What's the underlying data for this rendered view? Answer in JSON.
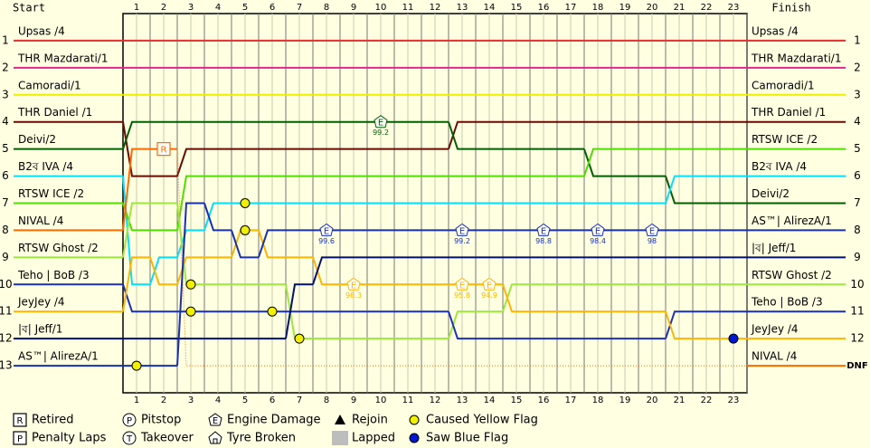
{
  "chart_data": {
    "type": "lap",
    "start_label": "Start",
    "finish_label": "Finish",
    "xlim": [
      0,
      23
    ],
    "xticks": [
      1,
      2,
      3,
      4,
      5,
      6,
      7,
      8,
      9,
      10,
      11,
      12,
      13,
      14,
      15,
      16,
      17,
      18,
      19,
      20,
      21,
      22,
      23
    ],
    "ylim": [
      0,
      14
    ],
    "yticks": [
      1,
      2,
      3,
      4,
      5,
      6,
      7,
      8,
      9,
      10,
      11,
      12,
      13
    ],
    "y2ticks": [
      1,
      2,
      3,
      4,
      5,
      6,
      7,
      8,
      9,
      10,
      11,
      12,
      {
        "value": 13,
        "label": "DNF"
      }
    ],
    "series": [
      {
        "name": "Upsas /4",
        "color": "#e03030",
        "values": [
          1,
          1,
          1,
          1,
          1,
          1,
          1,
          1,
          1,
          1,
          1,
          1,
          1,
          1,
          1,
          1,
          1,
          1,
          1,
          1,
          1,
          1,
          1,
          1
        ]
      },
      {
        "name": "THR Mazdarati/1",
        "color": "#e0288c",
        "values": [
          2,
          2,
          2,
          2,
          2,
          2,
          2,
          2,
          2,
          2,
          2,
          2,
          2,
          2,
          2,
          2,
          2,
          2,
          2,
          2,
          2,
          2,
          2,
          2
        ]
      },
      {
        "name": "Camoradi/1",
        "color": "#eeee00",
        "values": [
          3,
          3,
          3,
          3,
          3,
          3,
          3,
          3,
          3,
          3,
          3,
          3,
          3,
          3,
          3,
          3,
          3,
          3,
          3,
          3,
          3,
          3,
          3,
          3
        ]
      },
      {
        "name": "THR Daniel /1",
        "color": "#6b0a00",
        "values": [
          4,
          6,
          6,
          5,
          5,
          5,
          5,
          5,
          5,
          5,
          5,
          5,
          5,
          4,
          4,
          4,
          4,
          4,
          4,
          4,
          4,
          4,
          4,
          4
        ]
      },
      {
        "name": "Deivi/2",
        "color": "#006000",
        "values": [
          5,
          4,
          4,
          4,
          4,
          4,
          4,
          4,
          4,
          4,
          4,
          4,
          4,
          5,
          5,
          5,
          5,
          5,
          6,
          6,
          6,
          7,
          7,
          7
        ],
        "events": [
          {
            "lap": 10,
            "shape": "pentagon",
            "symbol": "E",
            "value": 99.2
          }
        ]
      },
      {
        "name": "B2ব IVA /4",
        "color": "#00e0ff",
        "values": [
          6,
          10,
          9,
          8,
          7,
          7,
          7,
          7,
          7,
          7,
          7,
          7,
          7,
          7,
          7,
          7,
          7,
          7,
          7,
          7,
          7,
          6,
          6,
          6
        ],
        "events": [
          {
            "lap": 5,
            "shape": "yellow-dot"
          }
        ]
      },
      {
        "name": "RTSW ICE /2",
        "color": "#50dd00",
        "values": [
          7,
          8,
          8,
          6,
          6,
          6,
          6,
          6,
          6,
          6,
          6,
          6,
          6,
          6,
          6,
          6,
          6,
          6,
          5,
          5,
          5,
          5,
          5,
          5
        ]
      },
      {
        "name": "NIVAL /4",
        "color": "#ff6a00",
        "values": [
          8,
          5,
          5,
          13,
          13,
          13,
          13,
          13,
          13,
          13,
          13,
          13,
          13,
          13,
          13,
          13,
          13,
          13,
          13,
          13,
          13,
          13,
          13,
          13
        ],
        "events": [
          {
            "lap": 2,
            "shape": "box",
            "symbol": "R"
          }
        ]
      },
      {
        "name": "RTSW Ghost /2",
        "color": "#9ce83c",
        "values": [
          9,
          7,
          7,
          10,
          10,
          10,
          10,
          12,
          12,
          12,
          12,
          12,
          12,
          11,
          11,
          10,
          10,
          10,
          10,
          10,
          10,
          10,
          10,
          10
        ],
        "events": [
          {
            "lap": 3,
            "shape": "yellow-dot"
          },
          {
            "lap": 7,
            "shape": "yellow-dot"
          }
        ]
      },
      {
        "name": "Teho | BoB /3",
        "color": "#1c2fb8",
        "values": [
          10,
          11,
          11,
          11,
          11,
          11,
          11,
          11,
          11,
          11,
          11,
          11,
          11,
          12,
          12,
          12,
          12,
          12,
          12,
          12,
          12,
          11,
          11,
          11
        ],
        "events": [
          {
            "lap": 3,
            "shape": "yellow-dot"
          },
          {
            "lap": 6,
            "shape": "yellow-dot"
          }
        ]
      },
      {
        "name": "JeyJey /4",
        "color": "#ffb400",
        "values": [
          11,
          9,
          10,
          9,
          9,
          8,
          9,
          9,
          10,
          10,
          10,
          10,
          10,
          10,
          10,
          11,
          11,
          11,
          11,
          11,
          11,
          12,
          12,
          12
        ],
        "events": [
          {
            "lap": 5,
            "shape": "yellow-dot"
          },
          {
            "lap": 9,
            "shape": "pentagon",
            "symbol": "E",
            "value": 98.3
          },
          {
            "lap": 13,
            "shape": "pentagon",
            "symbol": "E",
            "value": 95.8
          },
          {
            "lap": 14,
            "shape": "pentagon",
            "symbol": "E",
            "value": 94.9
          },
          {
            "lap": 23,
            "shape": "blue-dot"
          }
        ]
      },
      {
        "name": "|ব| Jeff/1",
        "color": "#00106e",
        "values": [
          12,
          12,
          12,
          12,
          12,
          12,
          12,
          10,
          9,
          9,
          9,
          9,
          9,
          9,
          9,
          9,
          9,
          9,
          9,
          9,
          9,
          9,
          9,
          9
        ]
      },
      {
        "name": "AS™| AlirezA/1",
        "color": "#1830b0",
        "values": [
          13,
          13,
          13,
          7,
          8,
          9,
          8,
          8,
          8,
          8,
          8,
          8,
          8,
          8,
          8,
          8,
          8,
          8,
          8,
          8,
          8,
          8,
          8,
          8
        ],
        "events": [
          {
            "lap": 1,
            "shape": "yellow-dot"
          },
          {
            "lap": 8,
            "shape": "pentagon",
            "symbol": "E",
            "value": 99.6
          },
          {
            "lap": 13,
            "shape": "pentagon",
            "symbol": "E",
            "value": 99.2
          },
          {
            "lap": 16,
            "shape": "pentagon",
            "symbol": "E",
            "value": 98.8
          },
          {
            "lap": 18,
            "shape": "pentagon",
            "symbol": "E",
            "value": 98.4
          },
          {
            "lap": 20,
            "shape": "pentagon",
            "symbol": "E",
            "value": 98
          }
        ]
      }
    ],
    "legend": [
      {
        "shape": "box",
        "symbol": "R",
        "label": "Retired"
      },
      {
        "shape": "box",
        "symbol": "P",
        "label": "Penalty Laps"
      },
      {
        "shape": "circle",
        "symbol": "P",
        "label": "Pitstop"
      },
      {
        "shape": "circle",
        "symbol": "T",
        "label": "Takeover"
      },
      {
        "shape": "pentagon",
        "symbol": "E",
        "label": "Engine Damage"
      },
      {
        "shape": "house",
        "label": "Tyre Broken"
      },
      {
        "shape": "triangle",
        "label": "Rejoin"
      },
      {
        "shape": "gray",
        "label": "Lapped"
      },
      {
        "shape": "yellow-dot",
        "label": "Caused Yellow Flag"
      },
      {
        "shape": "blue-dot",
        "label": "Saw Blue Flag"
      }
    ]
  }
}
